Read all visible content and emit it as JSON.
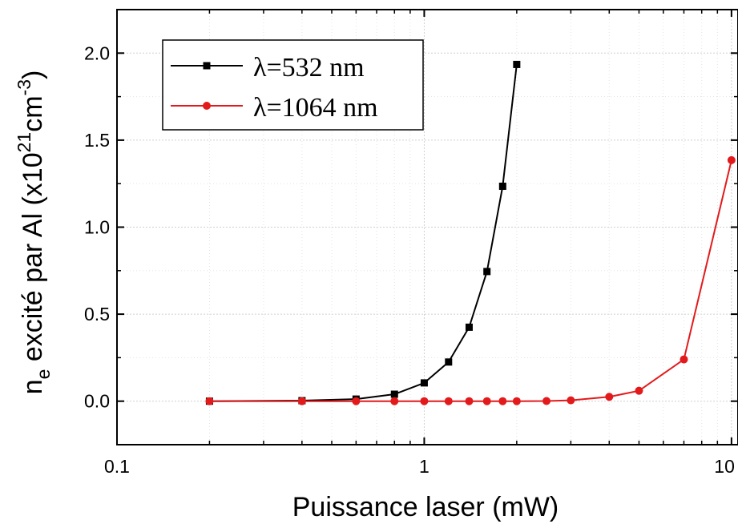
{
  "chart_data": {
    "type": "line",
    "xlabel": "Puissance laser (mW)",
    "ylabel": {
      "main": "n",
      "subscript": "e",
      "text": " excité par Al (x10",
      "exp1": "21",
      "mid": "cm",
      "exp2": "-3",
      "end": ")"
    },
    "x_scale": "log",
    "xlim": [
      0.1,
      10.5
    ],
    "ylim": [
      -0.25,
      2.25
    ],
    "x_ticks": [
      0.1,
      1,
      10
    ],
    "x_tick_labels": [
      "0.1",
      "1",
      "10"
    ],
    "y_ticks": [
      0.0,
      0.5,
      1.0,
      1.5,
      2.0
    ],
    "y_tick_labels": [
      "0.0",
      "0.5",
      "1.0",
      "1.5",
      "2.0"
    ],
    "grid": true,
    "legend_position": "top-left",
    "series": [
      {
        "name": "λ=532 nm",
        "color": "#000000",
        "marker": "square",
        "x": [
          0.2,
          0.4,
          0.6,
          0.8,
          1.0,
          1.2,
          1.4,
          1.6,
          1.8,
          2.0
        ],
        "y": [
          0.0,
          0.003,
          0.012,
          0.04,
          0.105,
          0.225,
          0.425,
          0.745,
          1.235,
          1.935
        ]
      },
      {
        "name": "λ=1064 nm",
        "color": "#e31a1c",
        "marker": "circle",
        "x": [
          0.2,
          0.4,
          0.6,
          0.8,
          1.0,
          1.2,
          1.4,
          1.6,
          1.8,
          2.0,
          2.5,
          3.0,
          4.0,
          5.0,
          7.0,
          10.0
        ],
        "y": [
          0.0,
          0.0,
          0.0,
          0.0,
          0.0,
          0.0,
          0.0,
          0.0,
          0.0,
          0.0,
          0.001,
          0.005,
          0.025,
          0.06,
          0.24,
          1.385
        ]
      }
    ]
  }
}
